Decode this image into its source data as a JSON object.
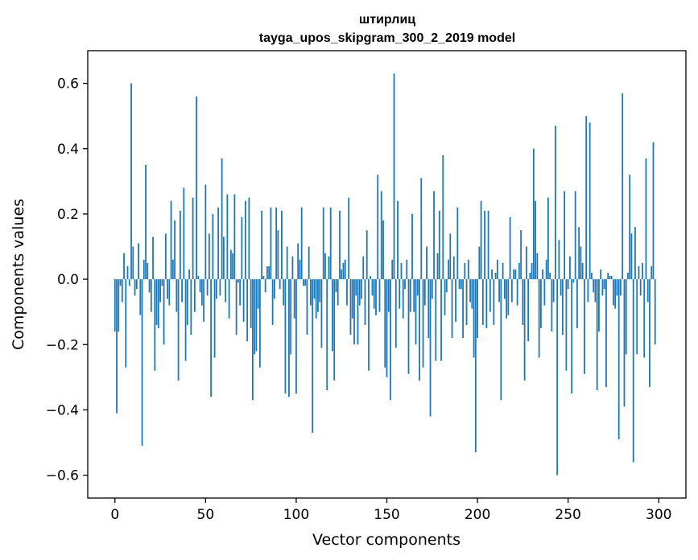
{
  "chart_data": {
    "type": "bar",
    "title": "штирлиц",
    "subtitle": "tayga_upos_skipgram_300_2_2019 model",
    "xlabel": "Vector components",
    "ylabel": "Components values",
    "xlim": [
      -15,
      315
    ],
    "ylim": [
      -0.67,
      0.7
    ],
    "xticks": [
      0,
      50,
      100,
      150,
      200,
      250,
      300
    ],
    "xtick_labels": [
      "0",
      "50",
      "100",
      "150",
      "200",
      "250",
      "300"
    ],
    "yticks": [
      -0.6,
      -0.4,
      -0.2,
      0.0,
      0.2,
      0.4,
      0.6
    ],
    "ytick_labels": [
      "−0.6",
      "−0.4",
      "−0.2",
      "0.0",
      "0.2",
      "0.4",
      "0.6"
    ],
    "bar_color": "#1f77b4",
    "grid": false,
    "series": [
      {
        "values": [
          -0.16,
          -0.41,
          -0.16,
          -0.02,
          -0.07,
          0.08,
          -0.27,
          0.04,
          -0.02,
          0.6,
          0.1,
          -0.05,
          -0.03,
          0.11,
          -0.11,
          -0.51,
          0.06,
          0.35,
          0.05,
          -0.04,
          -0.1,
          0.13,
          -0.28,
          -0.14,
          -0.15,
          -0.07,
          -0.02,
          -0.2,
          0.14,
          -0.06,
          -0.08,
          0.24,
          0.06,
          0.18,
          -0.1,
          -0.31,
          0.21,
          -0.07,
          0.28,
          -0.25,
          -0.14,
          0.03,
          -0.17,
          0.25,
          -0.1,
          0.56,
          0.01,
          -0.04,
          -0.08,
          -0.13,
          0.29,
          -0.05,
          0.14,
          -0.36,
          0.2,
          -0.24,
          -0.06,
          0.22,
          -0.05,
          0.37,
          0.13,
          -0.07,
          0.26,
          -0.12,
          0.09,
          0.08,
          0.26,
          -0.17,
          -0.01,
          -0.08,
          0.19,
          -0.13,
          0.24,
          -0.19,
          0.25,
          -0.15,
          -0.37,
          -0.23,
          -0.22,
          -0.09,
          -0.27,
          0.21,
          0.01,
          -0.04,
          0.04,
          0.04,
          0.22,
          -0.14,
          -0.06,
          0.22,
          0.15,
          -0.03,
          0.21,
          -0.08,
          -0.35,
          0.1,
          -0.36,
          -0.23,
          0.07,
          -0.12,
          -0.35,
          0.11,
          0.06,
          0.22,
          -0.02,
          -0.02,
          -0.17,
          0.1,
          -0.08,
          -0.47,
          -0.06,
          -0.12,
          -0.1,
          -0.07,
          -0.21,
          0.22,
          0.08,
          -0.34,
          0.07,
          0.22,
          -0.22,
          -0.31,
          -0.04,
          -0.08,
          0.21,
          0.03,
          0.05,
          0.06,
          -0.08,
          0.25,
          -0.17,
          -0.12,
          -0.2,
          -0.05,
          -0.2,
          -0.08,
          -0.06,
          0.07,
          -0.14,
          0.15,
          -0.28,
          0.01,
          -0.05,
          -0.09,
          -0.11,
          0.32,
          -0.1,
          0.27,
          0.18,
          -0.27,
          -0.3,
          -0.1,
          -0.37,
          0.06,
          0.63,
          -0.21,
          0.24,
          -0.09,
          0.05,
          -0.12,
          -0.03,
          0.06,
          -0.29,
          -0.1,
          0.2,
          -0.1,
          -0.2,
          -0.05,
          -0.31,
          0.31,
          -0.27,
          -0.08,
          0.1,
          -0.18,
          -0.42,
          -0.06,
          0.27,
          -0.25,
          0.08,
          0.21,
          -0.25,
          0.38,
          -0.11,
          -0.04,
          0.06,
          0.14,
          -0.18,
          0.07,
          -0.13,
          0.22,
          -0.03,
          -0.03,
          -0.18,
          0.05,
          -0.14,
          0.06,
          -0.07,
          -0.09,
          -0.24,
          -0.53,
          -0.18,
          0.1,
          0.24,
          -0.14,
          0.21,
          -0.15,
          0.21,
          -0.1,
          0.03,
          -0.14,
          0.02,
          0.06,
          -0.07,
          -0.37,
          0.05,
          -0.06,
          -0.12,
          -0.11,
          0.19,
          -0.07,
          0.03,
          0.03,
          -0.08,
          0.05,
          0.15,
          -0.14,
          -0.31,
          0.1,
          -0.19,
          0.02,
          0.05,
          0.4,
          0.24,
          0.08,
          -0.24,
          -0.15,
          0.03,
          -0.08,
          0.06,
          0.25,
          0.02,
          -0.16,
          -0.07,
          0.47,
          -0.6,
          0.12,
          -0.05,
          -0.17,
          0.27,
          -0.28,
          -0.03,
          0.07,
          -0.35,
          -0.01,
          0.27,
          -0.15,
          0.16,
          0.1,
          0.05,
          -0.29,
          0.5,
          -0.07,
          0.48,
          0.02,
          -0.04,
          -0.07,
          -0.34,
          -0.16,
          0.03,
          -0.05,
          -0.03,
          -0.33,
          0.02,
          0.01,
          0.01,
          -0.08,
          -0.09,
          -0.05,
          -0.49,
          -0.05,
          0.57,
          -0.39,
          -0.23,
          0.02,
          0.32,
          0.14,
          -0.56,
          0.16,
          -0.23,
          0.04,
          -0.05,
          0.05,
          -0.24,
          0.37,
          -0.07,
          -0.33,
          0.04,
          0.42,
          -0.2
        ]
      }
    ]
  }
}
